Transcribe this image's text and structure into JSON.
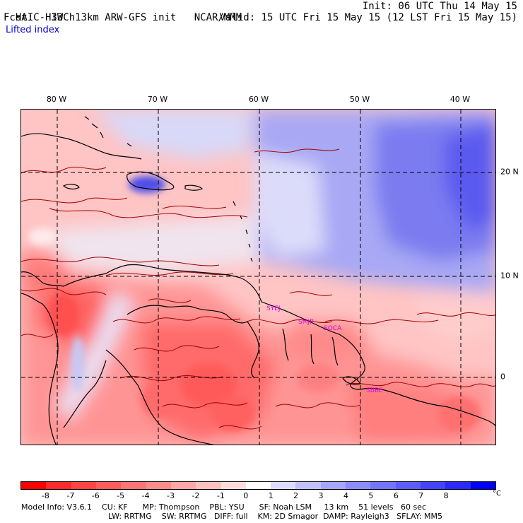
{
  "header": {
    "model": "HAIC-HIWC 13km ARW-GFS init",
    "org": "NCAR/MMM",
    "init": "Init: 06 UTC Thu 14 May 15",
    "fcst": "Fcst:   33 h",
    "valid": "Valid: 15 UTC Fri 15 May 15 (12 LST Fri 15 May 15)",
    "field": "Lifted index"
  },
  "map": {
    "longitude_labels": [
      "80 W",
      "70 W",
      "60 W",
      "50 W",
      "40 W"
    ],
    "latitude_labels": [
      "20 N",
      "10 N",
      "0"
    ],
    "stations": [
      "SYEJ",
      "SMJP",
      "SOCA",
      "SBBE"
    ],
    "colors": {
      "coastline": "#000000",
      "contour": "#a00000",
      "grid": "#000000"
    }
  },
  "colorbar": {
    "ticks": [
      "-8",
      "-7",
      "-6",
      "-5",
      "-4",
      "-3",
      "-2",
      "-1",
      "0",
      "1",
      "2",
      "3",
      "4",
      "5",
      "6",
      "7",
      "8"
    ],
    "unit": "°C",
    "colors": [
      "#ff0000",
      "#ff2a2a",
      "#ff4444",
      "#ff5c5c",
      "#ff7474",
      "#ff8c8c",
      "#ffa6a6",
      "#ffc0c0",
      "#ffdcdc",
      "#ffffff",
      "#dcdcff",
      "#c0c0ff",
      "#a6a6ff",
      "#8c8cff",
      "#7474ff",
      "#5c5cff",
      "#4444ff",
      "#2a2aff",
      "#0000ff"
    ]
  },
  "model_info": {
    "line1": "Model Info: V3.6.1    CU: KF      MP: Thompson    PBL: YSU      SF: Noah LSM     13 km    51 levels   60 sec",
    "line2": "LW: RRTMG    SW: RRTMG   DIFF: full    KM: 2D Smagor  DAMP: Rayleigh3   SFLAY: MM5"
  }
}
